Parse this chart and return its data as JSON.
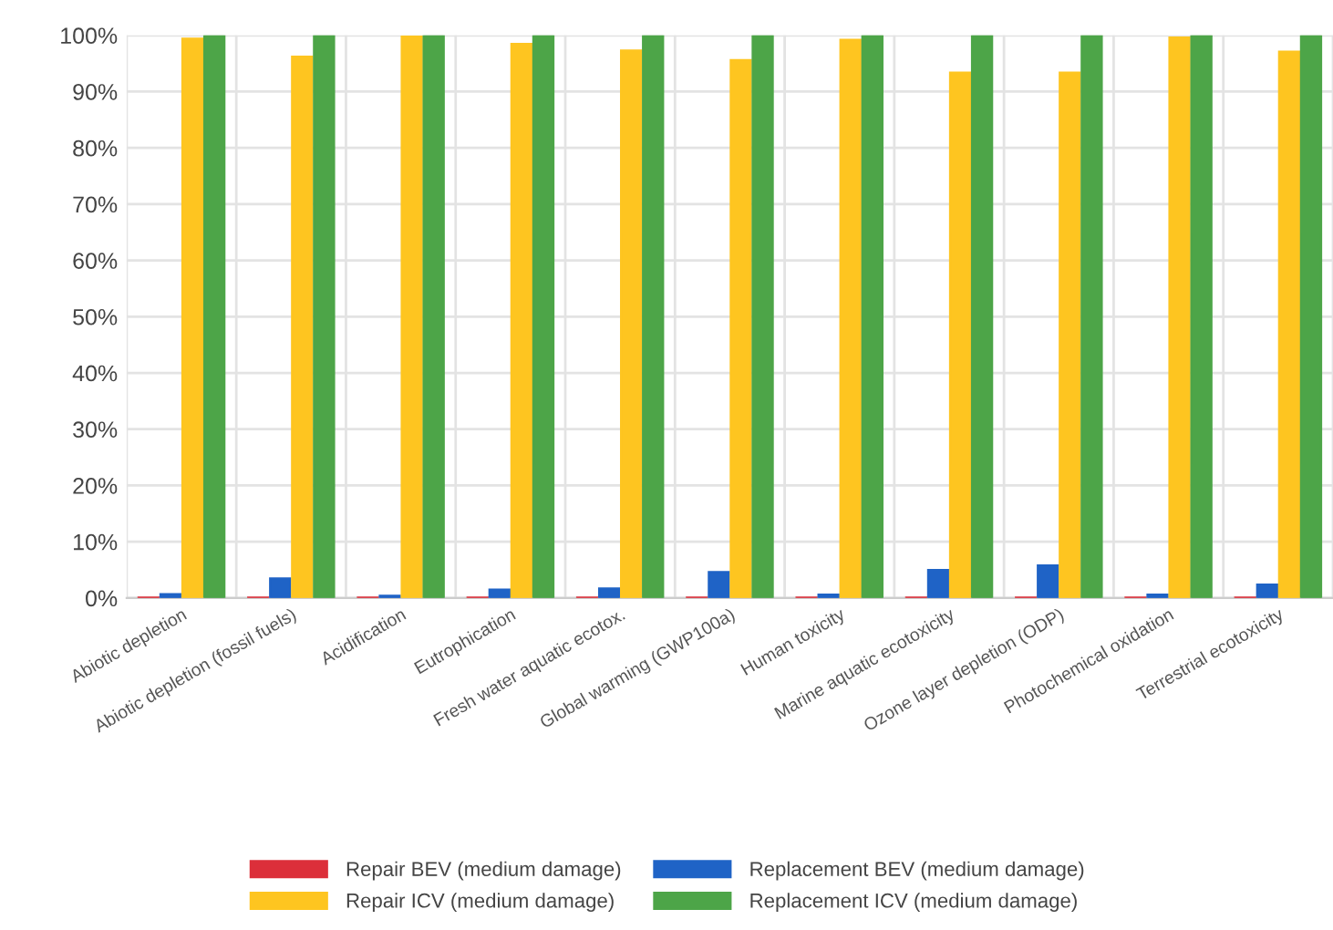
{
  "chart_data": {
    "type": "bar",
    "categories": [
      "Abiotic depletion",
      "Abiotic depletion (fossil fuels)",
      "Acidification",
      "Eutrophication",
      "Fresh water aquatic ecotox.",
      "Global warming (GWP100a)",
      "Human toxicity",
      "Marine aquatic ecotoxicity",
      "Ozone layer depletion (ODP)",
      "Photochemical oxidation",
      "Terrestrial ecotoxicity"
    ],
    "series": [
      {
        "name": "Repair BEV (medium damage)",
        "color": "#dc2f3a",
        "values": [
          0.1,
          0.1,
          0.1,
          0.1,
          0.1,
          0.1,
          0.1,
          0.1,
          0.1,
          0.1,
          0.1
        ]
      },
      {
        "name": "Replacement BEV (medium damage)",
        "color": "#1f63c6",
        "values": [
          0.7,
          3.5,
          0.4,
          1.5,
          1.7,
          4.6,
          0.6,
          5.0,
          5.8,
          0.6,
          2.4
        ]
      },
      {
        "name": "Repair ICV (medium damage)",
        "color": "#fec520",
        "values": [
          99.4,
          96.2,
          99.8,
          98.5,
          97.3,
          95.6,
          99.2,
          93.4,
          93.4,
          99.6,
          97.1
        ]
      },
      {
        "name": "Replacement ICV (medium damage)",
        "color": "#4da548",
        "values": [
          100,
          100,
          100,
          100,
          100,
          100,
          100,
          100,
          100,
          100,
          100
        ]
      }
    ],
    "ylim": [
      0,
      100
    ],
    "yticks": [
      {
        "value": 0,
        "label": "0%"
      },
      {
        "value": 10,
        "label": "10%"
      },
      {
        "value": 20,
        "label": "20%"
      },
      {
        "value": 30,
        "label": "30%"
      },
      {
        "value": 40,
        "label": "40%"
      },
      {
        "value": 50,
        "label": "50%"
      },
      {
        "value": 60,
        "label": "60%"
      },
      {
        "value": 70,
        "label": "70%"
      },
      {
        "value": 80,
        "label": "80%"
      },
      {
        "value": 90,
        "label": "90%"
      },
      {
        "value": 100,
        "label": "100%"
      }
    ],
    "grid": true,
    "legend": "bottom"
  }
}
